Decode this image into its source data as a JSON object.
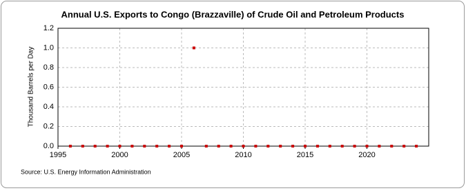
{
  "chart_data": {
    "type": "scatter",
    "title": "Annual U.S. Exports to Congo (Brazzaville) of Crude Oil and Petroleum Products",
    "y_label": "Thousand Barrels per Day",
    "source": "Source: U.S. Energy Information Administration",
    "x": [
      1996,
      1997,
      1998,
      1999,
      2000,
      2001,
      2002,
      2003,
      2004,
      2005,
      2006,
      2007,
      2008,
      2009,
      2010,
      2011,
      2012,
      2013,
      2014,
      2015,
      2016,
      2017,
      2018,
      2019,
      2020,
      2021,
      2022,
      2023,
      2024
    ],
    "series": [
      {
        "name": "Exports",
        "color": "#cc0000",
        "values": [
          0,
          0,
          0,
          0,
          0,
          0,
          0,
          0,
          0,
          0,
          1,
          0,
          0,
          0,
          0,
          0,
          0,
          0,
          0,
          0,
          0,
          0,
          0,
          0,
          0,
          0,
          0,
          0,
          0
        ]
      }
    ],
    "xlim": [
      1995,
      2025
    ],
    "xticks": [
      1995,
      2000,
      2005,
      2010,
      2015,
      2020
    ],
    "ylim": [
      0,
      1.2
    ],
    "yticks": [
      {
        "value": 0,
        "label": "0.0"
      },
      {
        "value": 0.2,
        "label": "0.2"
      },
      {
        "value": 0.4,
        "label": "0.4"
      },
      {
        "value": 0.6,
        "label": "0.6"
      },
      {
        "value": 0.8,
        "label": "0.8"
      },
      {
        "value": 1,
        "label": "1.0"
      },
      {
        "value": 1.2,
        "label": "1.2"
      }
    ],
    "grid": true
  }
}
